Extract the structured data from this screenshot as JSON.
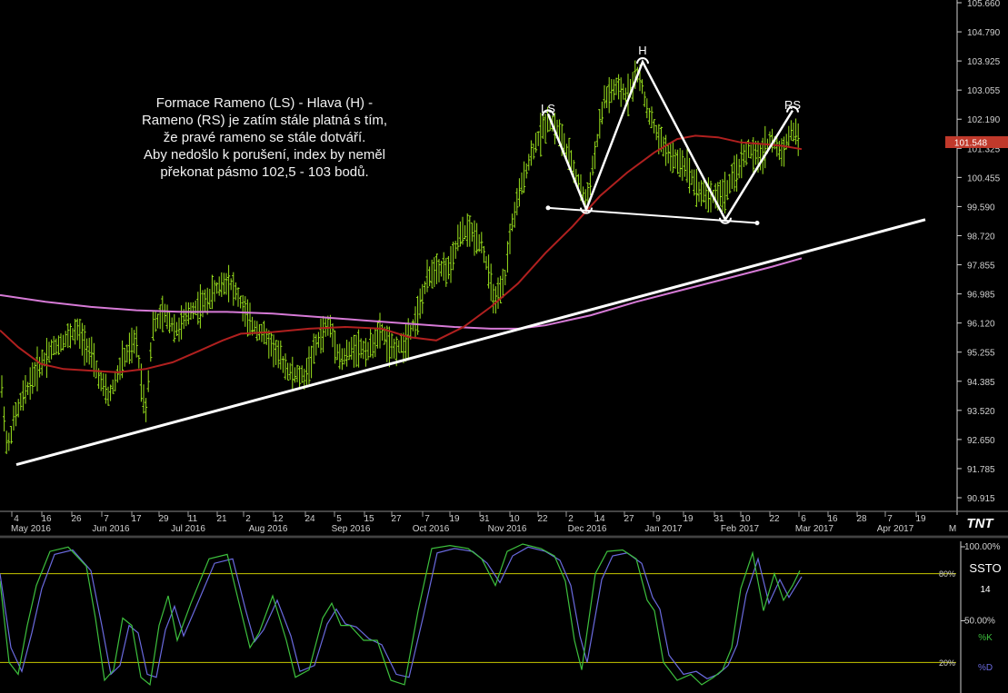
{
  "colors": {
    "background": "#000000",
    "price_bars": "#9ae21d",
    "ma_short": "#b0201f",
    "ma_long": "#d67ad6",
    "trendline": "#ffffff",
    "pattern": "#ffffff",
    "price_tag": "#c0392b",
    "stoch_k": "#3dbf3d",
    "stoch_d": "#6a6adf",
    "levels": "#c8c800"
  },
  "annotation": {
    "lines": [
      "Formace Rameno (LS) - Hlava (H) -",
      "Rameno (RS) je zatím stále platná s tím,",
      "že pravé rameno se stále dotváří.",
      "Aby nedošlo k porušení, index by neměl",
      "překonat pásmo 102,5 - 103 bodů."
    ]
  },
  "pattern_labels": {
    "ls": "LS",
    "h": "H",
    "rs": "RS"
  },
  "logo": "TNT",
  "last_price": "101.548",
  "chart_data": [
    {
      "type": "ohlc",
      "y_ticks": [
        "105.660",
        "104.790",
        "103.925",
        "103.055",
        "102.190",
        "101.325",
        "100.455",
        "99.590",
        "98.720",
        "97.855",
        "96.985",
        "96.120",
        "95.255",
        "94.385",
        "93.520",
        "92.650",
        "91.785",
        "90.915"
      ],
      "ylim": [
        90.915,
        105.66
      ],
      "x_days": [
        "4",
        "16",
        "26",
        "7",
        "17",
        "29",
        "11",
        "21",
        "2",
        "12",
        "24",
        "5",
        "15",
        "27",
        "7",
        "19",
        "31",
        "10",
        "22",
        "2",
        "14",
        "27",
        "9",
        "19",
        "31",
        "10",
        "22",
        "6",
        "16",
        "28",
        "7",
        "19"
      ],
      "x_months": [
        "May 2016",
        "Jun 2016",
        "Jul 2016",
        "Aug 2016",
        "Sep 2016",
        "Oct 2016",
        "Nov 2016",
        "Dec 2016",
        "Jan 2017",
        "Feb 2017",
        "Mar 2017",
        "Apr 2017",
        "M"
      ],
      "price_path": [
        [
          0,
          94.8
        ],
        [
          8,
          92.3
        ],
        [
          15,
          93.2
        ],
        [
          25,
          93.9
        ],
        [
          40,
          94.7
        ],
        [
          55,
          95.3
        ],
        [
          70,
          95.6
        ],
        [
          85,
          95.9
        ],
        [
          100,
          95.2
        ],
        [
          110,
          94.4
        ],
        [
          120,
          93.9
        ],
        [
          135,
          95.0
        ],
        [
          150,
          95.6
        ],
        [
          160,
          93.4
        ],
        [
          168,
          96.0
        ],
        [
          180,
          96.4
        ],
        [
          195,
          95.9
        ],
        [
          210,
          96.5
        ],
        [
          225,
          96.7
        ],
        [
          240,
          97.2
        ],
        [
          252,
          97.4
        ],
        [
          262,
          96.9
        ],
        [
          275,
          96.1
        ],
        [
          290,
          95.8
        ],
        [
          305,
          95.2
        ],
        [
          320,
          94.6
        ],
        [
          335,
          94.5
        ],
        [
          350,
          95.6
        ],
        [
          362,
          96.1
        ],
        [
          375,
          95.0
        ],
        [
          390,
          95.4
        ],
        [
          405,
          95.3
        ],
        [
          420,
          95.9
        ],
        [
          430,
          95.3
        ],
        [
          445,
          95.5
        ],
        [
          460,
          96.4
        ],
        [
          470,
          97.4
        ],
        [
          480,
          97.8
        ],
        [
          495,
          97.7
        ],
        [
          505,
          98.7
        ],
        [
          515,
          98.9
        ],
        [
          530,
          98.5
        ],
        [
          545,
          96.7
        ],
        [
          555,
          97.3
        ],
        [
          562,
          98.9
        ],
        [
          570,
          99.8
        ],
        [
          580,
          100.8
        ],
        [
          590,
          101.5
        ],
        [
          603,
          102.2
        ],
        [
          615,
          101.8
        ],
        [
          628,
          100.9
        ],
        [
          645,
          99.7
        ],
        [
          655,
          101.2
        ],
        [
          665,
          102.8
        ],
        [
          678,
          103.1
        ],
        [
          690,
          102.9
        ],
        [
          702,
          103.6
        ],
        [
          712,
          102.5
        ],
        [
          725,
          101.6
        ],
        [
          740,
          101.0
        ],
        [
          755,
          100.8
        ],
        [
          770,
          100.0
        ],
        [
          785,
          99.9
        ],
        [
          798,
          100.0
        ],
        [
          810,
          100.6
        ],
        [
          822,
          101.3
        ],
        [
          835,
          101.0
        ],
        [
          848,
          101.6
        ],
        [
          860,
          101.2
        ],
        [
          872,
          101.9
        ],
        [
          880,
          101.5
        ]
      ],
      "ma_short_path": [
        [
          0,
          95.9
        ],
        [
          20,
          95.4
        ],
        [
          45,
          94.9
        ],
        [
          70,
          94.75
        ],
        [
          100,
          94.7
        ],
        [
          130,
          94.65
        ],
        [
          160,
          94.75
        ],
        [
          190,
          94.95
        ],
        [
          220,
          95.3
        ],
        [
          245,
          95.6
        ],
        [
          265,
          95.8
        ],
        [
          300,
          95.85
        ],
        [
          340,
          95.95
        ],
        [
          380,
          96.0
        ],
        [
          420,
          95.95
        ],
        [
          450,
          95.7
        ],
        [
          480,
          95.6
        ],
        [
          510,
          96.0
        ],
        [
          540,
          96.6
        ],
        [
          570,
          97.3
        ],
        [
          600,
          98.2
        ],
        [
          630,
          99.0
        ],
        [
          660,
          99.9
        ],
        [
          690,
          100.6
        ],
        [
          720,
          101.2
        ],
        [
          745,
          101.6
        ],
        [
          765,
          101.7
        ],
        [
          790,
          101.65
        ],
        [
          815,
          101.5
        ],
        [
          840,
          101.45
        ],
        [
          860,
          101.4
        ],
        [
          882,
          101.3
        ]
      ],
      "ma_long_path": [
        [
          0,
          96.95
        ],
        [
          50,
          96.75
        ],
        [
          100,
          96.6
        ],
        [
          150,
          96.5
        ],
        [
          200,
          96.45
        ],
        [
          250,
          96.45
        ],
        [
          300,
          96.4
        ],
        [
          350,
          96.3
        ],
        [
          400,
          96.2
        ],
        [
          450,
          96.1
        ],
        [
          500,
          96.0
        ],
        [
          540,
          95.95
        ],
        [
          570,
          95.95
        ],
        [
          600,
          96.05
        ],
        [
          650,
          96.35
        ],
        [
          700,
          96.75
        ],
        [
          750,
          97.1
        ],
        [
          800,
          97.45
        ],
        [
          850,
          97.8
        ],
        [
          882,
          98.05
        ]
      ],
      "trendline": [
        [
          18,
          91.9
        ],
        [
          1018,
          99.2
        ]
      ],
      "neckline": [
        [
          603,
          99.55
        ],
        [
          833,
          99.1
        ]
      ],
      "pattern_points": [
        [
          603,
          102.35
        ],
        [
          645,
          99.5
        ],
        [
          707,
          103.9
        ],
        [
          798,
          99.2
        ],
        [
          872,
          102.45
        ]
      ]
    },
    {
      "type": "line",
      "title": "SSTO",
      "param": "14",
      "series_names": [
        "%K",
        "%D"
      ],
      "y_ticks": [
        "100.00%",
        "50.00%"
      ],
      "level_labels": [
        "80%",
        "20%"
      ],
      "levels": [
        80,
        20
      ],
      "ylim": [
        0,
        100
      ],
      "k_path": [
        [
          0,
          75
        ],
        [
          10,
          20
        ],
        [
          20,
          12
        ],
        [
          30,
          45
        ],
        [
          40,
          72
        ],
        [
          55,
          95
        ],
        [
          75,
          98
        ],
        [
          95,
          85
        ],
        [
          105,
          50
        ],
        [
          115,
          8
        ],
        [
          125,
          15
        ],
        [
          135,
          50
        ],
        [
          145,
          45
        ],
        [
          155,
          10
        ],
        [
          165,
          5
        ],
        [
          175,
          45
        ],
        [
          185,
          65
        ],
        [
          195,
          35
        ],
        [
          210,
          60
        ],
        [
          230,
          90
        ],
        [
          250,
          93
        ],
        [
          265,
          55
        ],
        [
          275,
          30
        ],
        [
          285,
          40
        ],
        [
          300,
          65
        ],
        [
          315,
          35
        ],
        [
          325,
          10
        ],
        [
          340,
          15
        ],
        [
          355,
          50
        ],
        [
          365,
          60
        ],
        [
          375,
          45
        ],
        [
          385,
          45
        ],
        [
          400,
          35
        ],
        [
          415,
          35
        ],
        [
          430,
          8
        ],
        [
          445,
          5
        ],
        [
          460,
          55
        ],
        [
          475,
          97
        ],
        [
          495,
          99
        ],
        [
          515,
          97
        ],
        [
          530,
          90
        ],
        [
          545,
          72
        ],
        [
          558,
          95
        ],
        [
          575,
          100
        ],
        [
          595,
          97
        ],
        [
          610,
          92
        ],
        [
          622,
          75
        ],
        [
          632,
          35
        ],
        [
          640,
          15
        ],
        [
          655,
          80
        ],
        [
          668,
          95
        ],
        [
          685,
          96
        ],
        [
          700,
          90
        ],
        [
          712,
          62
        ],
        [
          720,
          55
        ],
        [
          730,
          20
        ],
        [
          745,
          8
        ],
        [
          760,
          12
        ],
        [
          772,
          5
        ],
        [
          785,
          10
        ],
        [
          795,
          15
        ],
        [
          805,
          30
        ],
        [
          815,
          70
        ],
        [
          828,
          94
        ],
        [
          840,
          55
        ],
        [
          852,
          80
        ],
        [
          862,
          62
        ],
        [
          872,
          72
        ],
        [
          880,
          82
        ]
      ],
      "d_path": [
        [
          0,
          80
        ],
        [
          12,
          30
        ],
        [
          24,
          14
        ],
        [
          35,
          40
        ],
        [
          46,
          70
        ],
        [
          60,
          93
        ],
        [
          80,
          96
        ],
        [
          100,
          82
        ],
        [
          112,
          45
        ],
        [
          122,
          12
        ],
        [
          132,
          18
        ],
        [
          142,
          45
        ],
        [
          152,
          40
        ],
        [
          162,
          12
        ],
        [
          172,
          10
        ],
        [
          182,
          42
        ],
        [
          192,
          58
        ],
        [
          202,
          38
        ],
        [
          216,
          58
        ],
        [
          236,
          87
        ],
        [
          256,
          90
        ],
        [
          270,
          56
        ],
        [
          280,
          34
        ],
        [
          290,
          42
        ],
        [
          305,
          62
        ],
        [
          320,
          38
        ],
        [
          330,
          14
        ],
        [
          346,
          18
        ],
        [
          360,
          46
        ],
        [
          370,
          56
        ],
        [
          380,
          46
        ],
        [
          392,
          44
        ],
        [
          406,
          36
        ],
        [
          420,
          32
        ],
        [
          436,
          12
        ],
        [
          450,
          10
        ],
        [
          466,
          52
        ],
        [
          481,
          94
        ],
        [
          500,
          97
        ],
        [
          520,
          95
        ],
        [
          536,
          87
        ],
        [
          550,
          74
        ],
        [
          564,
          92
        ],
        [
          581,
          98
        ],
        [
          600,
          95
        ],
        [
          616,
          89
        ],
        [
          628,
          72
        ],
        [
          638,
          38
        ],
        [
          646,
          20
        ],
        [
          662,
          76
        ],
        [
          674,
          92
        ],
        [
          690,
          94
        ],
        [
          706,
          87
        ],
        [
          718,
          64
        ],
        [
          726,
          56
        ],
        [
          736,
          25
        ],
        [
          752,
          12
        ],
        [
          766,
          14
        ],
        [
          778,
          9
        ],
        [
          790,
          12
        ],
        [
          801,
          18
        ],
        [
          811,
          32
        ],
        [
          821,
          66
        ],
        [
          834,
          90
        ],
        [
          846,
          60
        ],
        [
          858,
          76
        ],
        [
          868,
          64
        ],
        [
          878,
          74
        ],
        [
          882,
          78
        ]
      ]
    }
  ]
}
